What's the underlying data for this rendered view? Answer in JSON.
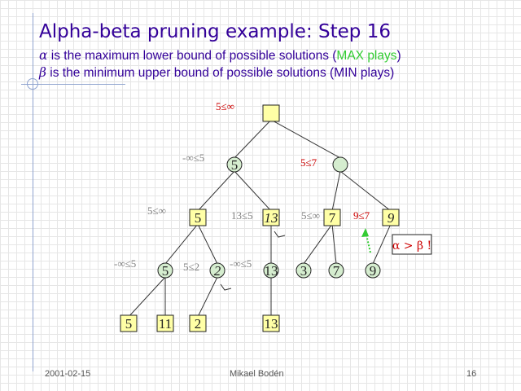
{
  "slide": {
    "title": "Alpha-beta pruning example: Step 16",
    "line1": {
      "symbol": "α",
      "text_before": " is the maximum lower bound of possible solutions (",
      "highlight": "MAX plays",
      "text_after": ")"
    },
    "line2": {
      "symbol": "β",
      "text": " is the minimum upper bound of possible solutions (MIN plays)"
    }
  },
  "colors": {
    "title": "#330099",
    "max_plays": "#33cc33",
    "node_fill": "#d5edcf",
    "leaf_fill": "#ffffa6",
    "bound_red": "#cc0000",
    "bound_gray": "#808080",
    "arrow": "#33cc33"
  },
  "tree": {
    "nodes": [
      {
        "id": "root",
        "shape": "square",
        "fill": "yellow",
        "value": ""
      },
      {
        "id": "l1a",
        "shape": "circle",
        "fill": "green",
        "value": "5"
      },
      {
        "id": "l1b",
        "shape": "circle",
        "fill": "green",
        "value": ""
      },
      {
        "id": "l2a",
        "shape": "square",
        "fill": "yellow",
        "value": "5"
      },
      {
        "id": "l2b",
        "shape": "square",
        "fill": "yellow",
        "value": "13"
      },
      {
        "id": "l2c",
        "shape": "square",
        "fill": "yellow",
        "value": "7"
      },
      {
        "id": "l2d",
        "shape": "square",
        "fill": "yellow",
        "value": "9"
      },
      {
        "id": "l3a",
        "shape": "circle",
        "fill": "green",
        "value": "5"
      },
      {
        "id": "l3b",
        "shape": "circle",
        "fill": "green",
        "value": "2"
      },
      {
        "id": "l3c",
        "shape": "circle",
        "fill": "green",
        "value": "13"
      },
      {
        "id": "l3d",
        "shape": "circle",
        "fill": "green",
        "value": "3"
      },
      {
        "id": "l3e",
        "shape": "circle",
        "fill": "green",
        "value": "7"
      },
      {
        "id": "l3f",
        "shape": "circle",
        "fill": "green",
        "value": "9"
      },
      {
        "id": "l4a",
        "shape": "square",
        "fill": "yellow",
        "value": "5"
      },
      {
        "id": "l4b",
        "shape": "square",
        "fill": "yellow",
        "value": "11"
      },
      {
        "id": "l4c",
        "shape": "square",
        "fill": "yellow",
        "value": "2"
      },
      {
        "id": "l4d",
        "shape": "square",
        "fill": "yellow",
        "value": "13"
      }
    ],
    "edges": [
      [
        "root",
        "l1a"
      ],
      [
        "root",
        "l1b"
      ],
      [
        "l1a",
        "l2a"
      ],
      [
        "l1a",
        "l2b"
      ],
      [
        "l1b",
        "l2c"
      ],
      [
        "l1b",
        "l2d"
      ],
      [
        "l2a",
        "l3a"
      ],
      [
        "l2a",
        "l3b"
      ],
      [
        "l2b",
        "l3c"
      ],
      [
        "l2c",
        "l3d"
      ],
      [
        "l2c",
        "l3e"
      ],
      [
        "l2d",
        "l3f"
      ],
      [
        "l3a",
        "l4a"
      ],
      [
        "l3a",
        "l4b"
      ],
      [
        "l3b",
        "l4c"
      ],
      [
        "l3c",
        "l4d"
      ]
    ],
    "pruned": [
      "l3b",
      "l2b"
    ],
    "bounds": [
      {
        "node": "root",
        "text": "5≤∞",
        "color": "red"
      },
      {
        "node": "l1a",
        "text": "-∞≤5",
        "color": "gray"
      },
      {
        "node": "l1b",
        "text": "5≤7",
        "color": "red"
      },
      {
        "node": "l2a",
        "text": "5≤∞",
        "color": "gray"
      },
      {
        "node": "l2b",
        "text": "13≤5",
        "color": "gray"
      },
      {
        "node": "l2c",
        "text": "5≤∞",
        "color": "gray"
      },
      {
        "node": "l2d",
        "text": "9≤7",
        "color": "red"
      },
      {
        "node": "l3a",
        "text": "-∞≤5",
        "color": "gray"
      },
      {
        "node": "l3b",
        "text": "5≤2",
        "color": "gray"
      },
      {
        "node": "l3c",
        "text": "-∞≤5",
        "color": "gray"
      }
    ],
    "cutoff_label": "α > β !"
  },
  "footer": {
    "date": "2001-02-15",
    "author": "Mikael Bodén",
    "page": "16"
  }
}
